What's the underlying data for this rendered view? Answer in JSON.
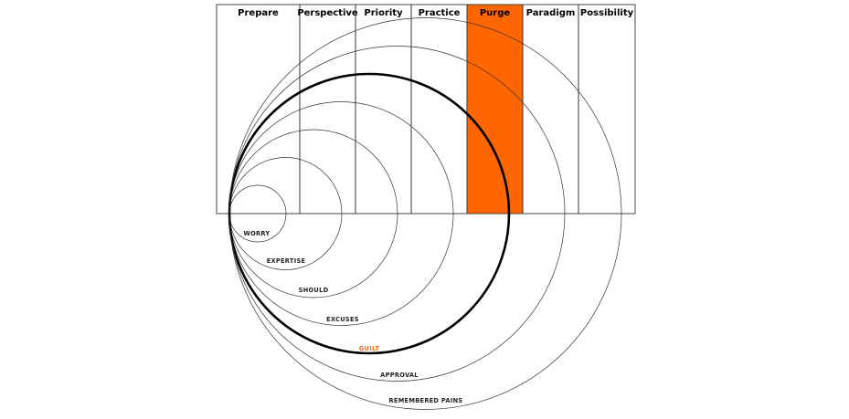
{
  "stages": [
    {
      "label": "Prepare",
      "highlight": false
    },
    {
      "label": "Perspective",
      "highlight": false
    },
    {
      "label": "Priority",
      "highlight": false
    },
    {
      "label": "Practice",
      "highlight": false
    },
    {
      "label": "Purge",
      "highlight": true
    },
    {
      "label": "Paradigm",
      "highlight": false
    },
    {
      "label": "Possibility",
      "highlight": false
    }
  ],
  "rings": [
    {
      "label": "WORRY",
      "highlight": false
    },
    {
      "label": "EXPERTISE",
      "highlight": false
    },
    {
      "label": "SHOULD",
      "highlight": false
    },
    {
      "label": "EXCUSES",
      "highlight": false
    },
    {
      "label": "GUILT",
      "highlight": true
    },
    {
      "label": "APPROVAL",
      "highlight": false
    },
    {
      "label": "REMEMBERED PAINS",
      "highlight": false
    }
  ],
  "colors": {
    "highlight_fill": "#ff6600",
    "highlight_text": "#f26a1b",
    "line": "#333333"
  }
}
